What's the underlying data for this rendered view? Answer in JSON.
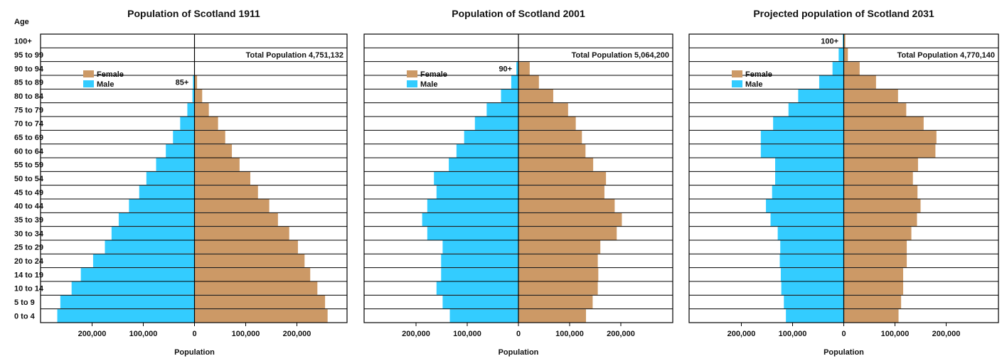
{
  "age_axis_label": "Age",
  "age_groups": [
    "0 to 4",
    "5 to 9",
    "10 to 14",
    "14 to 19",
    "20 to 24",
    "25 to 29",
    "30 to 34",
    "35 to 39",
    "40 to 44",
    "45 to 49",
    "50 to 54",
    "55 to 59",
    "60 to 64",
    "65 to 69",
    "70 to 74",
    "75 to 79",
    "80 to 84",
    "85 to 89",
    "90 to 94",
    "95 to 99",
    "100+"
  ],
  "colors": {
    "male": "#33ccff",
    "female": "#cc9966"
  },
  "chart_data": [
    {
      "type": "bar",
      "title": "Population of Scotland 1911",
      "xlabel": "Population",
      "ylabel": "Age",
      "xlim": [
        -300000,
        300000
      ],
      "x_tick_labels": [
        "200,000",
        "100,000",
        "0",
        "100,000",
        "200,000"
      ],
      "x_tick_values": [
        -200000,
        -100000,
        0,
        100000,
        200000
      ],
      "total_label": "Total Population 4,751,132",
      "top_label": "85+",
      "top_label_row": 17,
      "legend": [
        "Female",
        "Male"
      ],
      "legend_position": "top-left",
      "categories": [
        "0 to 4",
        "5 to 9",
        "10 to 14",
        "14 to 19",
        "20 to 24",
        "25 to 29",
        "30 to 34",
        "35 to 39",
        "40 to 44",
        "45 to 49",
        "50 to 54",
        "55 to 59",
        "60 to 64",
        "65 to 69",
        "70 to 74",
        "75 to 79",
        "80 to 84",
        "85 to 89",
        "90 to 94",
        "95 to 99",
        "100+"
      ],
      "series": [
        {
          "name": "Male",
          "values": [
            268000,
            262000,
            240000,
            222000,
            198000,
            175000,
            162000,
            148000,
            128000,
            108000,
            94000,
            75000,
            56000,
            42000,
            28000,
            14000,
            4000,
            3000,
            0,
            0,
            0
          ]
        },
        {
          "name": "Female",
          "values": [
            260000,
            255000,
            240000,
            226000,
            215000,
            202000,
            185000,
            163000,
            146000,
            124000,
            109000,
            88000,
            73000,
            60000,
            46000,
            28000,
            15000,
            5000,
            0,
            0,
            0
          ]
        }
      ]
    },
    {
      "type": "bar",
      "title": "Population of Scotland 2001",
      "xlabel": "Population",
      "ylabel": "Age",
      "xlim": [
        -300000,
        300000
      ],
      "x_tick_labels": [
        "200,000",
        "100,000",
        "0",
        "100,000",
        "200,000"
      ],
      "x_tick_values": [
        -200000,
        -100000,
        0,
        100000,
        200000
      ],
      "total_label": "Total Population 5,064,200",
      "top_label": "90+",
      "top_label_row": 18,
      "legend": [
        "Female",
        "Male"
      ],
      "legend_position": "top-left",
      "categories": [
        "0 to 4",
        "5 to 9",
        "10 to 14",
        "14 to 19",
        "20 to 24",
        "25 to 29",
        "30 to 34",
        "35 to 39",
        "40 to 44",
        "45 to 49",
        "50 to 54",
        "55 to 59",
        "60 to 64",
        "65 to 69",
        "70 to 74",
        "75 to 79",
        "80 to 84",
        "85 to 89",
        "90 to 94",
        "95 to 99",
        "100+"
      ],
      "series": [
        {
          "name": "Male",
          "values": [
            134000,
            148000,
            160000,
            151000,
            151000,
            148000,
            178000,
            188000,
            178000,
            160000,
            165000,
            136000,
            121000,
            106000,
            85000,
            62000,
            34000,
            14000,
            4000,
            0,
            0
          ]
        },
        {
          "name": "Female",
          "values": [
            132000,
            145000,
            155000,
            156000,
            155000,
            160000,
            192000,
            202000,
            188000,
            168000,
            171000,
            146000,
            131000,
            124000,
            112000,
            97000,
            68000,
            40000,
            22000,
            0,
            0
          ]
        }
      ]
    },
    {
      "type": "bar",
      "title": "Projected population of Scotland 2031",
      "xlabel": "Population",
      "ylabel": "Age",
      "xlim": [
        -300000,
        300000
      ],
      "x_tick_labels": [
        "200,000",
        "100,000",
        "0",
        "100,000",
        "200,000"
      ],
      "x_tick_values": [
        -200000,
        -100000,
        0,
        100000,
        200000
      ],
      "total_label": "Total Population 4,770,140",
      "top_label": "100+",
      "top_label_row": 20,
      "legend": [
        "Female",
        "Male"
      ],
      "legend_position": "top-left",
      "categories": [
        "0 to 4",
        "5 to 9",
        "10 to 14",
        "14 to 19",
        "20 to 24",
        "25 to 29",
        "30 to 34",
        "35 to 39",
        "40 to 44",
        "45 to 49",
        "50 to 54",
        "55 to 59",
        "60 to 64",
        "65 to 69",
        "70 to 74",
        "75 to 79",
        "80 to 84",
        "85 to 89",
        "90 to 94",
        "95 to 99",
        "100+"
      ],
      "series": [
        {
          "name": "Male",
          "values": [
            113000,
            117000,
            122000,
            123000,
            125000,
            124000,
            129000,
            143000,
            152000,
            140000,
            134000,
            134000,
            162000,
            162000,
            138000,
            108000,
            89000,
            48000,
            22000,
            10000,
            2000
          ]
        },
        {
          "name": "Female",
          "values": [
            107000,
            112000,
            116000,
            116000,
            123000,
            123000,
            132000,
            143000,
            150000,
            144000,
            135000,
            145000,
            179000,
            181000,
            156000,
            122000,
            106000,
            63000,
            31000,
            8000,
            3000
          ]
        }
      ]
    }
  ]
}
